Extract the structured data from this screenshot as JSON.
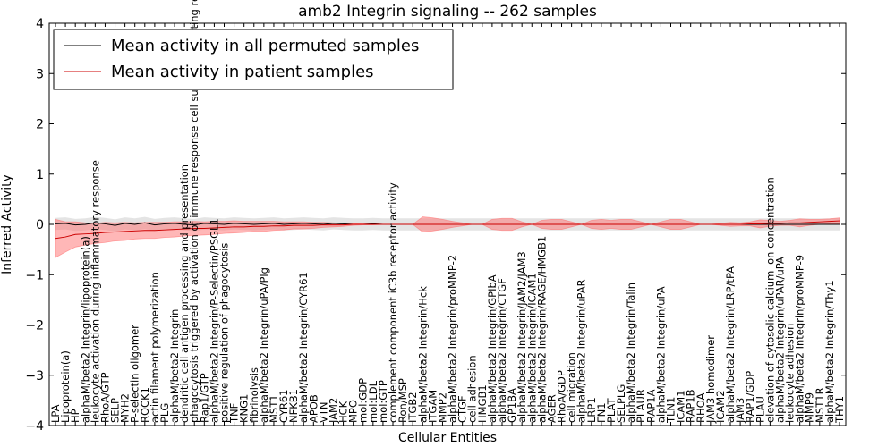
{
  "chart_data": {
    "type": "line",
    "title": "amb2 Integrin signaling -- 262 samples",
    "xlabel": "Cellular Entities",
    "ylabel": "Inferred Activity",
    "ylim": [
      -4,
      4
    ],
    "yticks": [
      -4,
      -3,
      -2,
      -1,
      0,
      1,
      2,
      3,
      4
    ],
    "ytick_labels": [
      "−4",
      "−3",
      "−2",
      "−1",
      "0",
      "1",
      "2",
      "3",
      "4"
    ],
    "grid": false,
    "legend_position": "top-left",
    "categories": [
      "LPA",
      "Lipoprotein(a)",
      "HP",
      "alphaM/beta2 Integrin/lipoprotein(a)",
      "leukocyte activation during inflammatory response",
      "RhoA/GTP",
      "SELP",
      "MYH2",
      "P-selectin oligomer",
      "ROCK1",
      "actin filament polymerization",
      "PLG",
      "alphaM/beta2 Integrin",
      "dendritic cell antigen processing and presentation",
      "phagocytosis triggered by activation of immune response cell surface activating receptor",
      "Rap1/GTP",
      "alphaM/beta2 Integrin/P-Selectin/PSGL1",
      "positive regulation of phagocytosis",
      "TNF",
      "KNG1",
      "fibrinolysis",
      "alphaM/beta2 Integrin/uPA/Plg",
      "MST1",
      "CYR61",
      "NFKB1",
      "alphaM/beta2 Integrin/CYR61",
      "APOB",
      "VTN",
      "JAM2",
      "HCK",
      "MPO",
      "mol:GDP",
      "mol:LDL",
      "mol:GTP",
      "complement component iC3b receptor activity",
      "Ron/MSP",
      "ITGB2",
      "alphaM/beta2 Integrin/Hck",
      "ITGAM",
      "MMP2",
      "alphaM/beta2 Integrin/proMMP-2",
      "CTGF",
      "cell adhesion",
      "HMGB1",
      "alphaM/beta2 Integrin/GPIbA",
      "alphaM/beta2 Integrin/CTGF",
      "GP1BA",
      "alphaM/beta2 Integrin/JAM2/JAM3",
      "alphaM/beta2 Integrin/ICAM1",
      "alphaM/beta2 Integrin/RAGE/HMGB1",
      "AGER",
      "RhoA/GDP",
      "cell migration",
      "alphaM/beta2 Integrin/uPAR",
      "LRP1",
      "FN1",
      "PLAT",
      "SELPLG",
      "alphaM/beta2 Integrin/Talin",
      "PLAUR",
      "RAP1A",
      "alphaM/beta2 Integrin/uPA",
      "TLN1",
      "ICAM1",
      "RAP1B",
      "RHOA",
      "JAM3 homodimer",
      "ICAM2",
      "alphaM/beta2 Integrin/LRP/tPA",
      "JAM3",
      "RAP1/GDP",
      "PLAU",
      "elevation of cytosolic calcium ion concentration",
      "alphaM/beta2 Integrin/uPAR/uPA",
      "leukocyte adhesion",
      "alphaM/beta2 Integrin/proMMP-9",
      "MMP9",
      "MST1R",
      "alphaM/beta2 Integrin/Thy1",
      "THY1"
    ],
    "series": [
      {
        "name": "Mean activity in all permuted samples",
        "color": "#000000",
        "values": [
          0.01,
          0.02,
          -0.01,
          0.0,
          0.03,
          0.01,
          -0.02,
          0.02,
          0.0,
          0.03,
          -0.01,
          0.01,
          0.02,
          0.0,
          -0.01,
          0.02,
          0.01,
          0.0,
          0.02,
          0.01,
          0.0,
          0.01,
          0.02,
          0.0,
          0.01,
          0.02,
          0.01,
          0.0,
          0.02,
          0.01,
          0.0,
          0.0,
          0.01,
          0.0,
          0.0,
          0.0,
          0.0,
          0.0,
          0.0,
          0.0,
          0.0,
          0.0,
          0.0,
          0.0,
          0.0,
          0.0,
          0.0,
          0.0,
          0.0,
          0.0,
          0.0,
          0.0,
          0.0,
          0.0,
          0.0,
          0.0,
          0.0,
          0.0,
          0.0,
          0.0,
          0.0,
          0.0,
          0.0,
          0.0,
          0.0,
          0.0,
          0.0,
          0.0,
          0.0,
          0.0,
          0.0,
          0.0,
          0.0,
          0.0,
          0.0,
          0.0,
          0.0,
          0.0,
          0.0,
          0.0
        ],
        "band_low": -0.12,
        "band_high": 0.12,
        "band_color": "#bbbbbb"
      },
      {
        "name": "Mean activity in patient samples",
        "color": "#cc0000",
        "values": [
          -0.28,
          -0.25,
          -0.2,
          -0.19,
          -0.18,
          -0.16,
          -0.15,
          -0.14,
          -0.13,
          -0.12,
          -0.12,
          -0.11,
          -0.1,
          -0.09,
          -0.08,
          -0.08,
          -0.07,
          -0.06,
          -0.05,
          -0.05,
          -0.04,
          -0.04,
          -0.03,
          -0.03,
          -0.02,
          -0.02,
          -0.02,
          -0.01,
          -0.01,
          -0.01,
          0.0,
          0.0,
          0.0,
          0.0,
          0.0,
          0.0,
          0.0,
          0.0,
          0.0,
          0.0,
          0.0,
          0.0,
          0.0,
          0.0,
          0.0,
          0.0,
          0.0,
          0.0,
          0.0,
          0.0,
          0.0,
          0.0,
          0.0,
          0.0,
          0.0,
          0.0,
          0.0,
          0.0,
          0.0,
          0.0,
          0.0,
          0.0,
          0.0,
          0.0,
          0.0,
          0.0,
          0.0,
          0.0,
          0.0,
          0.0,
          0.01,
          0.01,
          0.02,
          0.02,
          0.03,
          0.03,
          0.04,
          0.05,
          0.06,
          0.07
        ],
        "band_spread": [
          0.38,
          0.3,
          0.25,
          0.22,
          0.2,
          0.2,
          0.18,
          0.18,
          0.16,
          0.16,
          0.16,
          0.15,
          0.15,
          0.14,
          0.14,
          0.13,
          0.13,
          0.12,
          0.12,
          0.11,
          0.1,
          0.1,
          0.09,
          0.08,
          0.07,
          0.07,
          0.06,
          0.05,
          0.04,
          0.03,
          0.02,
          0.01,
          0.01,
          0.0,
          0.0,
          0.0,
          0.0,
          0.15,
          0.13,
          0.1,
          0.06,
          0.03,
          0.0,
          0.0,
          0.1,
          0.12,
          0.12,
          0.05,
          0.0,
          0.08,
          0.1,
          0.1,
          0.05,
          0.0,
          0.08,
          0.1,
          0.08,
          0.1,
          0.1,
          0.05,
          0.0,
          0.05,
          0.1,
          0.1,
          0.05,
          0.0,
          0.0,
          0.02,
          0.04,
          0.03,
          0.04,
          0.08,
          0.06,
          0.04,
          0.05,
          0.08,
          0.06,
          0.05,
          0.05,
          0.06
        ],
        "band_color": "#ff6f6f"
      }
    ]
  }
}
